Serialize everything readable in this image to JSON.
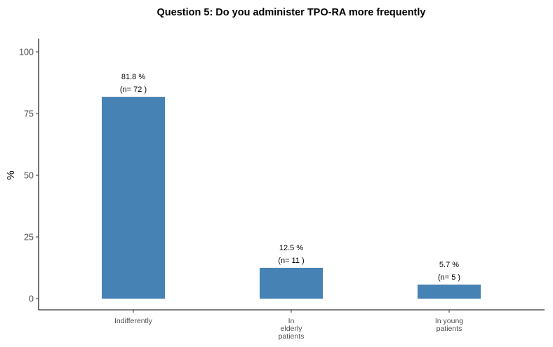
{
  "chart_data": {
    "type": "bar",
    "title": "Question 5: Do you administer TPO-RA more frequently",
    "xlabel": "",
    "ylabel": "%",
    "ylim": [
      0,
      100
    ],
    "yticks": [
      0,
      25,
      50,
      75,
      100
    ],
    "grid": false,
    "legend": "none",
    "bar_color": "#4682b4",
    "categories": [
      [
        "Indifferently"
      ],
      [
        "In",
        "elderly",
        "patients"
      ],
      [
        "In young",
        "patients"
      ]
    ],
    "values": [
      81.8,
      12.5,
      5.7
    ],
    "value_labels": [
      "81.8 %",
      "12.5 %",
      "5.7 %"
    ],
    "count_labels": [
      "(n= 72 )",
      "(n= 11 )",
      "(n= 5 )"
    ]
  }
}
